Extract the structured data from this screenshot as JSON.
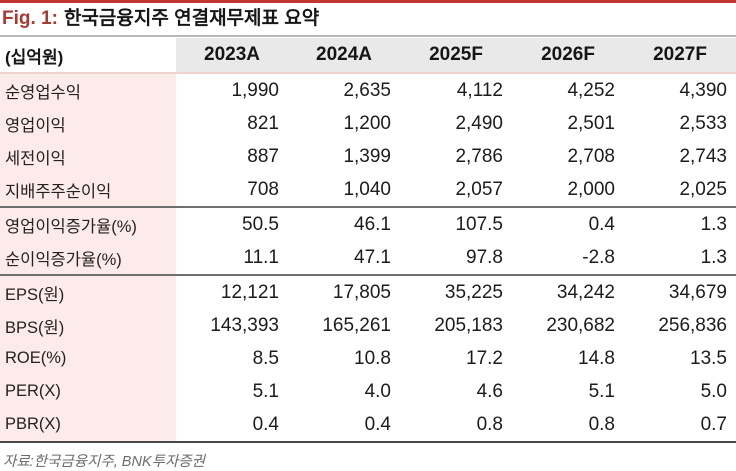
{
  "figure": {
    "label": "Fig. 1:",
    "title": "한국금융지주 연결재무제표 요약",
    "source": "자료:한국금융지주, BNK투자증권"
  },
  "table": {
    "unit_label": "(십억원)",
    "columns": [
      "2023A",
      "2024A",
      "2025F",
      "2026F",
      "2027F"
    ],
    "sections": [
      {
        "rows": [
          {
            "label": "순영업수익",
            "values": [
              "1,990",
              "2,635",
              "4,112",
              "4,252",
              "4,390"
            ]
          },
          {
            "label": "영업이익",
            "values": [
              "821",
              "1,200",
              "2,490",
              "2,501",
              "2,533"
            ]
          },
          {
            "label": "세전이익",
            "values": [
              "887",
              "1,399",
              "2,786",
              "2,708",
              "2,743"
            ]
          },
          {
            "label": "지배주주순이익",
            "values": [
              "708",
              "1,040",
              "2,057",
              "2,000",
              "2,025"
            ]
          }
        ]
      },
      {
        "rows": [
          {
            "label": "영업이익증가율(%)",
            "values": [
              "50.5",
              "46.1",
              "107.5",
              "0.4",
              "1.3"
            ]
          },
          {
            "label": "순이익증가율(%)",
            "values": [
              "11.1",
              "47.1",
              "97.8",
              "-2.8",
              "1.3"
            ]
          }
        ]
      },
      {
        "rows": [
          {
            "label": "EPS(원)",
            "values": [
              "12,121",
              "17,805",
              "35,225",
              "34,242",
              "34,679"
            ]
          },
          {
            "label": "BPS(원)",
            "values": [
              "143,393",
              "165,261",
              "205,183",
              "230,682",
              "256,836"
            ]
          },
          {
            "label": "ROE(%)",
            "values": [
              "8.5",
              "10.8",
              "17.2",
              "14.8",
              "13.5"
            ]
          },
          {
            "label": "PER(X)",
            "values": [
              "5.1",
              "4.0",
              "4.6",
              "5.1",
              "5.0"
            ]
          },
          {
            "label": "PBR(X)",
            "values": [
              "0.4",
              "0.4",
              "0.8",
              "0.8",
              "0.7"
            ]
          }
        ]
      }
    ]
  },
  "colors": {
    "accent_red": "#c2362f",
    "title_red": "#a93a32",
    "title_rule_gray": "#b9b9b9",
    "header_bg": "#e9e9e9",
    "header_rule_pink": "#f0d2ce",
    "label_bg": "#fcebe8",
    "section_rule": "#6f6f6f",
    "bottom_rule": "#474747",
    "source_gray": "#6c6c6c"
  }
}
